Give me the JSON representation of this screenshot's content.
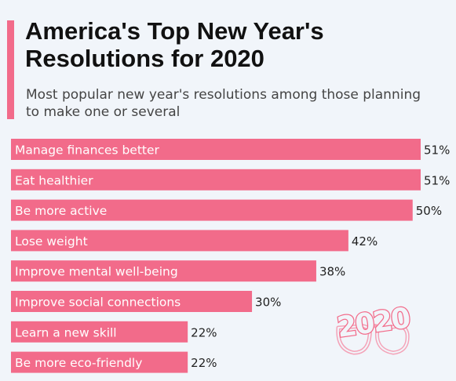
{
  "header": {
    "title": "America's Top New Year's Resolutions for 2020",
    "subtitle": "Most popular new year's resolutions among those planning to make one or several"
  },
  "colors": {
    "accent": "#f26b8a",
    "bar": "#f26b8a",
    "background": "#f1f5fa",
    "label_inside": "#ffffff",
    "value_label": "#222222"
  },
  "decoration": {
    "icon": "2020-glasses-icon",
    "text": "2020"
  },
  "chart_data": {
    "type": "bar",
    "orientation": "horizontal",
    "categories": [
      "Manage finances better",
      "Eat healthier",
      "Be more active",
      "Lose weight",
      "Improve mental well-being",
      "Improve social connections",
      "Learn a new skill",
      "Be more eco-friendly"
    ],
    "values": [
      51,
      51,
      50,
      42,
      38,
      30,
      22,
      22
    ],
    "value_labels": [
      "51%",
      "51%",
      "50%",
      "42%",
      "38%",
      "30%",
      "22%",
      "22%"
    ],
    "unit": "%",
    "xlim": [
      0,
      51
    ],
    "grid": false,
    "legend": "none"
  }
}
